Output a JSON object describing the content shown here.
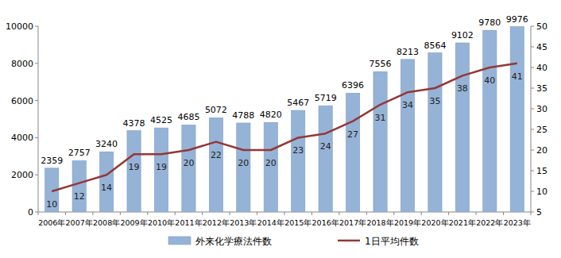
{
  "chart_data": {
    "type": "bar",
    "categories": [
      "2006年",
      "2007年",
      "2008年",
      "2009年",
      "2010年",
      "2011年",
      "2012年",
      "2013年",
      "2014年",
      "2015年",
      "2016年",
      "2017年",
      "2018年",
      "2019年",
      "2020年",
      "2021年",
      "2022年",
      "2023年"
    ],
    "series": [
      {
        "name": "外来化学療法件数",
        "type": "bar",
        "color": "#95b3d7",
        "values": [
          2359,
          2757,
          3240,
          4378,
          4525,
          4685,
          5072,
          4788,
          4820,
          5467,
          5719,
          6396,
          7556,
          8213,
          8564,
          9102,
          9780,
          9976
        ]
      },
      {
        "name": "1日平均件数",
        "type": "line",
        "color": "#953735",
        "axis": "y2",
        "marker": "none",
        "values": [
          10,
          12,
          14,
          19,
          19,
          20,
          22,
          20,
          20,
          23,
          24,
          27,
          31,
          34,
          35,
          38,
          40,
          41
        ]
      }
    ],
    "ylim": [
      0,
      10000
    ],
    "yticks": [
      0,
      2000,
      4000,
      6000,
      8000,
      10000
    ],
    "y2lim": [
      5,
      50
    ],
    "y2ticks": [
      5,
      10,
      15,
      20,
      25,
      30,
      35,
      40,
      45,
      50
    ],
    "grid": false,
    "legend": "bottom",
    "data_labels": true
  }
}
